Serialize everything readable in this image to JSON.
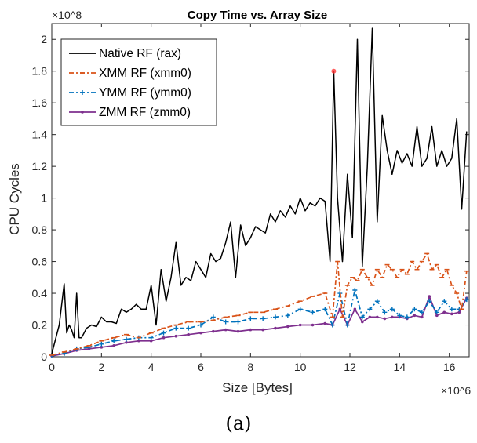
{
  "chart_data": {
    "type": "line",
    "title": "Copy Time vs. Array Size",
    "xlabel": "Size [Bytes]",
    "ylabel": "CPU Cycles",
    "x_multiplier": "×10^6",
    "y_multiplier": "×10^8",
    "xlim": [
      0,
      16.8
    ],
    "ylim": [
      0,
      2.1
    ],
    "x_ticks": [
      0,
      2,
      4,
      6,
      8,
      10,
      12,
      14,
      16
    ],
    "y_ticks": [
      0,
      0.2,
      0.4,
      0.6,
      0.8,
      1,
      1.2,
      1.4,
      1.6,
      1.8,
      2
    ],
    "x_tick_labels": [
      "0",
      "2",
      "4",
      "6",
      "8",
      "10",
      "12",
      "14",
      "16"
    ],
    "y_tick_labels": [
      "0",
      "0.2",
      "0.4",
      "0.6",
      "0.8",
      "1",
      "1.2",
      "1.4",
      "1.6",
      "1.8",
      "2"
    ],
    "grid": false,
    "legend_position": "top-left",
    "caption": "(a)",
    "series": [
      {
        "name": "Native RF (rax)",
        "color": "#000000",
        "style": "solid",
        "marker": "none",
        "x": [
          0,
          0.3,
          0.5,
          0.6,
          0.7,
          0.8,
          0.9,
          1.0,
          1.1,
          1.2,
          1.4,
          1.6,
          1.8,
          2.0,
          2.2,
          2.4,
          2.6,
          2.8,
          3.0,
          3.2,
          3.4,
          3.6,
          3.8,
          4.0,
          4.2,
          4.4,
          4.6,
          4.8,
          5.0,
          5.2,
          5.4,
          5.6,
          5.8,
          6.0,
          6.2,
          6.4,
          6.6,
          6.8,
          7.0,
          7.2,
          7.4,
          7.6,
          7.8,
          8.0,
          8.2,
          8.4,
          8.6,
          8.8,
          9.0,
          9.2,
          9.4,
          9.6,
          9.8,
          10.0,
          10.2,
          10.4,
          10.6,
          10.8,
          11.0,
          11.2,
          11.35,
          11.5,
          11.7,
          11.9,
          12.1,
          12.3,
          12.5,
          12.7,
          12.9,
          13.1,
          13.3,
          13.5,
          13.7,
          13.9,
          14.1,
          14.3,
          14.5,
          14.7,
          14.9,
          15.1,
          15.3,
          15.5,
          15.7,
          15.9,
          16.1,
          16.3,
          16.5,
          16.7
        ],
        "y": [
          0.02,
          0.2,
          0.46,
          0.15,
          0.2,
          0.17,
          0.12,
          0.4,
          0.12,
          0.12,
          0.18,
          0.2,
          0.19,
          0.25,
          0.22,
          0.22,
          0.21,
          0.3,
          0.28,
          0.3,
          0.33,
          0.3,
          0.3,
          0.45,
          0.2,
          0.55,
          0.35,
          0.5,
          0.72,
          0.45,
          0.5,
          0.48,
          0.6,
          0.55,
          0.5,
          0.65,
          0.6,
          0.62,
          0.72,
          0.85,
          0.5,
          0.83,
          0.7,
          0.75,
          0.82,
          0.8,
          0.78,
          0.9,
          0.85,
          0.92,
          0.88,
          0.95,
          0.9,
          1.0,
          0.92,
          0.97,
          0.95,
          1.0,
          0.98,
          0.6,
          1.8,
          1.0,
          0.6,
          1.15,
          0.75,
          2.0,
          0.57,
          1.2,
          2.07,
          0.85,
          1.52,
          1.3,
          1.15,
          1.3,
          1.22,
          1.28,
          1.2,
          1.45,
          1.2,
          1.25,
          1.45,
          1.2,
          1.3,
          1.2,
          1.25,
          1.5,
          0.93,
          1.42
        ]
      },
      {
        "name": "XMM RF (xmm0)",
        "color": "#D95319",
        "style": "dash-dot",
        "marker": "tick",
        "x": [
          0,
          0.5,
          1.0,
          1.5,
          2.0,
          2.5,
          3.0,
          3.5,
          4.0,
          4.5,
          5.0,
          5.5,
          6.0,
          6.5,
          7.0,
          7.5,
          8.0,
          8.5,
          9.0,
          9.5,
          10.0,
          10.5,
          11.0,
          11.3,
          11.5,
          11.7,
          11.9,
          12.1,
          12.3,
          12.5,
          12.7,
          12.9,
          13.1,
          13.3,
          13.5,
          13.7,
          13.9,
          14.1,
          14.3,
          14.5,
          14.7,
          14.9,
          15.1,
          15.3,
          15.5,
          15.7,
          15.9,
          16.1,
          16.3,
          16.5,
          16.7
        ],
        "y": [
          0.01,
          0.03,
          0.05,
          0.07,
          0.1,
          0.12,
          0.14,
          0.12,
          0.15,
          0.18,
          0.2,
          0.22,
          0.22,
          0.23,
          0.25,
          0.26,
          0.28,
          0.28,
          0.3,
          0.32,
          0.35,
          0.38,
          0.4,
          0.25,
          0.6,
          0.25,
          0.45,
          0.5,
          0.48,
          0.55,
          0.5,
          0.45,
          0.55,
          0.5,
          0.58,
          0.55,
          0.5,
          0.55,
          0.52,
          0.6,
          0.55,
          0.6,
          0.65,
          0.55,
          0.58,
          0.5,
          0.55,
          0.45,
          0.4,
          0.3,
          0.54
        ]
      },
      {
        "name": "YMM RF (ymm0)",
        "color": "#0072BD",
        "style": "dash-dot",
        "marker": "plus",
        "x": [
          0,
          0.5,
          1.0,
          1.5,
          2.0,
          2.5,
          3.0,
          3.5,
          4.0,
          4.5,
          5.0,
          5.5,
          6.0,
          6.5,
          7.0,
          7.5,
          8.0,
          8.5,
          9.0,
          9.5,
          10.0,
          10.5,
          11.0,
          11.3,
          11.6,
          11.9,
          12.2,
          12.5,
          12.8,
          13.1,
          13.4,
          13.7,
          14.0,
          14.3,
          14.6,
          14.9,
          15.2,
          15.5,
          15.8,
          16.1,
          16.4,
          16.7
        ],
        "y": [
          0.01,
          0.02,
          0.05,
          0.06,
          0.08,
          0.1,
          0.11,
          0.12,
          0.12,
          0.15,
          0.18,
          0.18,
          0.2,
          0.25,
          0.22,
          0.22,
          0.24,
          0.24,
          0.25,
          0.26,
          0.3,
          0.28,
          0.3,
          0.2,
          0.4,
          0.2,
          0.42,
          0.25,
          0.3,
          0.35,
          0.28,
          0.3,
          0.26,
          0.25,
          0.3,
          0.28,
          0.35,
          0.28,
          0.35,
          0.3,
          0.3,
          0.36
        ]
      },
      {
        "name": "ZMM RF (zmm0)",
        "color": "#7E2F8E",
        "style": "solid",
        "marker": "dot",
        "x": [
          0,
          0.5,
          1.0,
          1.5,
          2.0,
          2.5,
          3.0,
          3.5,
          4.0,
          4.5,
          5.0,
          5.5,
          6.0,
          6.5,
          7.0,
          7.5,
          8.0,
          8.5,
          9.0,
          9.5,
          10.0,
          10.5,
          11.0,
          11.3,
          11.6,
          11.9,
          12.2,
          12.5,
          12.8,
          13.1,
          13.4,
          13.7,
          14.0,
          14.3,
          14.6,
          14.9,
          15.2,
          15.5,
          15.8,
          16.1,
          16.4,
          16.7
        ],
        "y": [
          0.005,
          0.02,
          0.04,
          0.05,
          0.06,
          0.07,
          0.09,
          0.1,
          0.1,
          0.12,
          0.13,
          0.14,
          0.15,
          0.16,
          0.17,
          0.16,
          0.17,
          0.17,
          0.18,
          0.19,
          0.2,
          0.2,
          0.21,
          0.2,
          0.3,
          0.2,
          0.3,
          0.22,
          0.25,
          0.25,
          0.24,
          0.25,
          0.25,
          0.24,
          0.26,
          0.25,
          0.38,
          0.26,
          0.28,
          0.27,
          0.28,
          0.37
        ]
      }
    ],
    "highlight_point": {
      "x": 11.35,
      "y": 1.8,
      "color": "#ff3333"
    }
  }
}
